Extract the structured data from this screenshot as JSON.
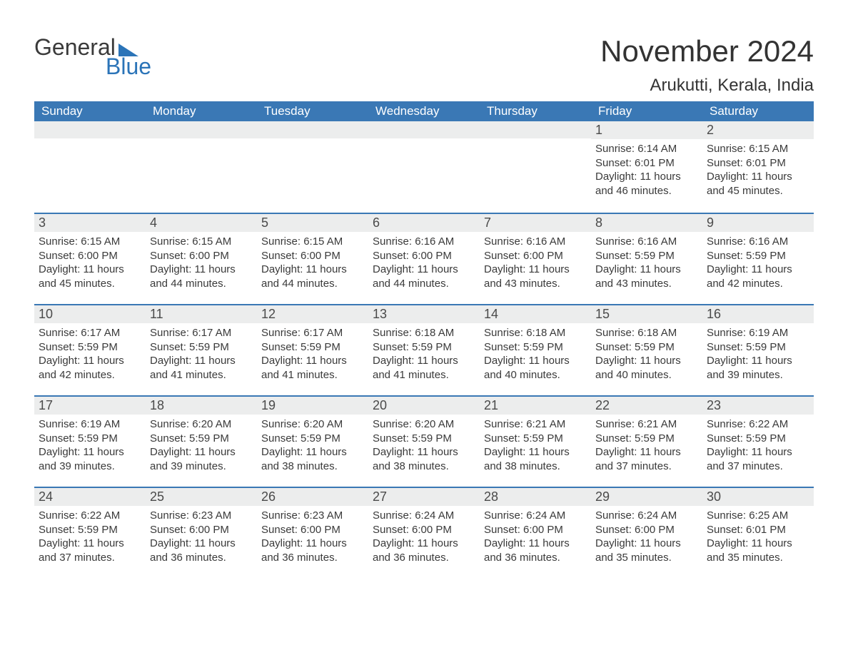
{
  "logo": {
    "part1": "General",
    "part2": "Blue"
  },
  "title": {
    "month": "November 2024",
    "location": "Arukutti, Kerala, India"
  },
  "colors": {
    "header_bg": "#3a78b5",
    "header_text": "#ffffff",
    "daynum_bg": "#eceded",
    "rule": "#3a78b5",
    "body_text": "#3a3a3a",
    "logo_blue": "#2b74b8",
    "logo_gray": "#3a3a3a"
  },
  "weekdays": [
    "Sunday",
    "Monday",
    "Tuesday",
    "Wednesday",
    "Thursday",
    "Friday",
    "Saturday"
  ],
  "weeks": [
    [
      null,
      null,
      null,
      null,
      null,
      {
        "n": "1",
        "sr": "Sunrise: 6:14 AM",
        "ss": "Sunset: 6:01 PM",
        "dl": "Daylight: 11 hours and 46 minutes."
      },
      {
        "n": "2",
        "sr": "Sunrise: 6:15 AM",
        "ss": "Sunset: 6:01 PM",
        "dl": "Daylight: 11 hours and 45 minutes."
      }
    ],
    [
      {
        "n": "3",
        "sr": "Sunrise: 6:15 AM",
        "ss": "Sunset: 6:00 PM",
        "dl": "Daylight: 11 hours and 45 minutes."
      },
      {
        "n": "4",
        "sr": "Sunrise: 6:15 AM",
        "ss": "Sunset: 6:00 PM",
        "dl": "Daylight: 11 hours and 44 minutes."
      },
      {
        "n": "5",
        "sr": "Sunrise: 6:15 AM",
        "ss": "Sunset: 6:00 PM",
        "dl": "Daylight: 11 hours and 44 minutes."
      },
      {
        "n": "6",
        "sr": "Sunrise: 6:16 AM",
        "ss": "Sunset: 6:00 PM",
        "dl": "Daylight: 11 hours and 44 minutes."
      },
      {
        "n": "7",
        "sr": "Sunrise: 6:16 AM",
        "ss": "Sunset: 6:00 PM",
        "dl": "Daylight: 11 hours and 43 minutes."
      },
      {
        "n": "8",
        "sr": "Sunrise: 6:16 AM",
        "ss": "Sunset: 5:59 PM",
        "dl": "Daylight: 11 hours and 43 minutes."
      },
      {
        "n": "9",
        "sr": "Sunrise: 6:16 AM",
        "ss": "Sunset: 5:59 PM",
        "dl": "Daylight: 11 hours and 42 minutes."
      }
    ],
    [
      {
        "n": "10",
        "sr": "Sunrise: 6:17 AM",
        "ss": "Sunset: 5:59 PM",
        "dl": "Daylight: 11 hours and 42 minutes."
      },
      {
        "n": "11",
        "sr": "Sunrise: 6:17 AM",
        "ss": "Sunset: 5:59 PM",
        "dl": "Daylight: 11 hours and 41 minutes."
      },
      {
        "n": "12",
        "sr": "Sunrise: 6:17 AM",
        "ss": "Sunset: 5:59 PM",
        "dl": "Daylight: 11 hours and 41 minutes."
      },
      {
        "n": "13",
        "sr": "Sunrise: 6:18 AM",
        "ss": "Sunset: 5:59 PM",
        "dl": "Daylight: 11 hours and 41 minutes."
      },
      {
        "n": "14",
        "sr": "Sunrise: 6:18 AM",
        "ss": "Sunset: 5:59 PM",
        "dl": "Daylight: 11 hours and 40 minutes."
      },
      {
        "n": "15",
        "sr": "Sunrise: 6:18 AM",
        "ss": "Sunset: 5:59 PM",
        "dl": "Daylight: 11 hours and 40 minutes."
      },
      {
        "n": "16",
        "sr": "Sunrise: 6:19 AM",
        "ss": "Sunset: 5:59 PM",
        "dl": "Daylight: 11 hours and 39 minutes."
      }
    ],
    [
      {
        "n": "17",
        "sr": "Sunrise: 6:19 AM",
        "ss": "Sunset: 5:59 PM",
        "dl": "Daylight: 11 hours and 39 minutes."
      },
      {
        "n": "18",
        "sr": "Sunrise: 6:20 AM",
        "ss": "Sunset: 5:59 PM",
        "dl": "Daylight: 11 hours and 39 minutes."
      },
      {
        "n": "19",
        "sr": "Sunrise: 6:20 AM",
        "ss": "Sunset: 5:59 PM",
        "dl": "Daylight: 11 hours and 38 minutes."
      },
      {
        "n": "20",
        "sr": "Sunrise: 6:20 AM",
        "ss": "Sunset: 5:59 PM",
        "dl": "Daylight: 11 hours and 38 minutes."
      },
      {
        "n": "21",
        "sr": "Sunrise: 6:21 AM",
        "ss": "Sunset: 5:59 PM",
        "dl": "Daylight: 11 hours and 38 minutes."
      },
      {
        "n": "22",
        "sr": "Sunrise: 6:21 AM",
        "ss": "Sunset: 5:59 PM",
        "dl": "Daylight: 11 hours and 37 minutes."
      },
      {
        "n": "23",
        "sr": "Sunrise: 6:22 AM",
        "ss": "Sunset: 5:59 PM",
        "dl": "Daylight: 11 hours and 37 minutes."
      }
    ],
    [
      {
        "n": "24",
        "sr": "Sunrise: 6:22 AM",
        "ss": "Sunset: 5:59 PM",
        "dl": "Daylight: 11 hours and 37 minutes."
      },
      {
        "n": "25",
        "sr": "Sunrise: 6:23 AM",
        "ss": "Sunset: 6:00 PM",
        "dl": "Daylight: 11 hours and 36 minutes."
      },
      {
        "n": "26",
        "sr": "Sunrise: 6:23 AM",
        "ss": "Sunset: 6:00 PM",
        "dl": "Daylight: 11 hours and 36 minutes."
      },
      {
        "n": "27",
        "sr": "Sunrise: 6:24 AM",
        "ss": "Sunset: 6:00 PM",
        "dl": "Daylight: 11 hours and 36 minutes."
      },
      {
        "n": "28",
        "sr": "Sunrise: 6:24 AM",
        "ss": "Sunset: 6:00 PM",
        "dl": "Daylight: 11 hours and 36 minutes."
      },
      {
        "n": "29",
        "sr": "Sunrise: 6:24 AM",
        "ss": "Sunset: 6:00 PM",
        "dl": "Daylight: 11 hours and 35 minutes."
      },
      {
        "n": "30",
        "sr": "Sunrise: 6:25 AM",
        "ss": "Sunset: 6:01 PM",
        "dl": "Daylight: 11 hours and 35 minutes."
      }
    ]
  ]
}
